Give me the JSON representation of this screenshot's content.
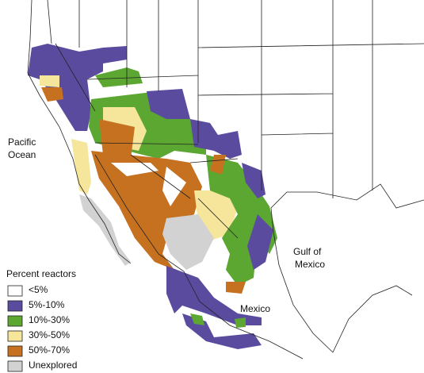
{
  "map": {
    "labels": {
      "pacific_ocean": [
        "Pacific",
        "Ocean"
      ],
      "gulf_of_mexico": [
        "Gulf of",
        "Mexico"
      ],
      "mexico": "Mexico"
    },
    "legend": {
      "title": "Percent reactors",
      "items": [
        {
          "label": "<5%",
          "color": "#ffffff"
        },
        {
          "label": "5%-10%",
          "color": "#5a4b9f"
        },
        {
          "label": "10%-30%",
          "color": "#5ba732"
        },
        {
          "label": "30%-50%",
          "color": "#f5e69b"
        },
        {
          "label": "50%-70%",
          "color": "#c6711f"
        },
        {
          "label": "Unexplored",
          "color": "#d2d2d2"
        }
      ]
    }
  }
}
